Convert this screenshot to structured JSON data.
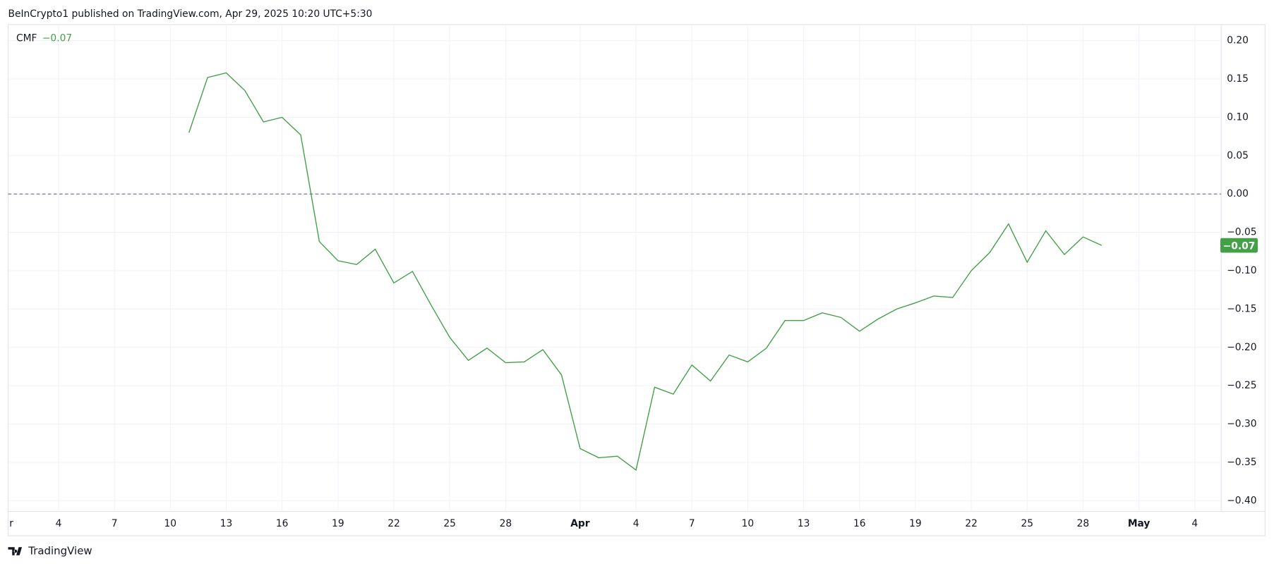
{
  "header": "BeInCrypto1 published on TradingView.com, Apr 29, 2025 10:20 UTC+5:30",
  "footer": "TradingView",
  "chart_data": {
    "type": "line",
    "x": [
      "2025-03-11",
      "2025-03-12",
      "2025-03-13",
      "2025-03-14",
      "2025-03-15",
      "2025-03-16",
      "2025-03-17",
      "2025-03-18",
      "2025-03-19",
      "2025-03-20",
      "2025-03-21",
      "2025-03-22",
      "2025-03-23",
      "2025-03-24",
      "2025-03-25",
      "2025-03-26",
      "2025-03-27",
      "2025-03-28",
      "2025-03-29",
      "2025-03-30",
      "2025-03-31",
      "2025-04-01",
      "2025-04-02",
      "2025-04-03",
      "2025-04-04",
      "2025-04-05",
      "2025-04-06",
      "2025-04-07",
      "2025-04-08",
      "2025-04-09",
      "2025-04-10",
      "2025-04-11",
      "2025-04-12",
      "2025-04-13",
      "2025-04-14",
      "2025-04-15",
      "2025-04-16",
      "2025-04-17",
      "2025-04-18",
      "2025-04-19",
      "2025-04-20",
      "2025-04-21",
      "2025-04-22",
      "2025-04-23",
      "2025-04-24",
      "2025-04-25",
      "2025-04-26",
      "2025-04-27",
      "2025-04-28",
      "2025-04-29"
    ],
    "series": [
      {
        "name": "CMF",
        "color": "#43a047",
        "values": [
          0.08,
          0.152,
          0.158,
          0.135,
          0.094,
          0.1,
          0.077,
          -0.062,
          -0.087,
          -0.092,
          -0.072,
          -0.116,
          -0.101,
          -0.145,
          -0.187,
          -0.217,
          -0.201,
          -0.22,
          -0.219,
          -0.203,
          -0.236,
          -0.332,
          -0.344,
          -0.342,
          -0.36,
          -0.252,
          -0.261,
          -0.223,
          -0.244,
          -0.21,
          -0.219,
          -0.201,
          -0.165,
          -0.165,
          -0.155,
          -0.161,
          -0.179,
          -0.163,
          -0.15,
          -0.142,
          -0.133,
          -0.135,
          -0.1,
          -0.076,
          -0.039,
          -0.089,
          -0.048,
          -0.079,
          -0.056,
          -0.067
        ],
        "value_labels": [
          null,
          null,
          null,
          null,
          null,
          null,
          null,
          null,
          null,
          null,
          null,
          null,
          null,
          null,
          null,
          null,
          null,
          null,
          null,
          null,
          null,
          null,
          null,
          null,
          null,
          null,
          null,
          null,
          null,
          null,
          null,
          null,
          null,
          null,
          null,
          null,
          null,
          null,
          null,
          null,
          null,
          null,
          null,
          null,
          null,
          null,
          null,
          null,
          null,
          "−0.07"
        ]
      }
    ],
    "xlim": [
      "2025-03-01T07:00:00Z",
      "2025-05-05T10:00:00Z"
    ],
    "xticks": [
      {
        "value": "2025-03-01",
        "label": "r"
      },
      {
        "value": "2025-03-04",
        "label": "4"
      },
      {
        "value": "2025-03-07",
        "label": "7"
      },
      {
        "value": "2025-03-10",
        "label": "10"
      },
      {
        "value": "2025-03-13",
        "label": "13"
      },
      {
        "value": "2025-03-16",
        "label": "16"
      },
      {
        "value": "2025-03-19",
        "label": "19"
      },
      {
        "value": "2025-03-22",
        "label": "22"
      },
      {
        "value": "2025-03-25",
        "label": "25"
      },
      {
        "value": "2025-03-28",
        "label": "28"
      },
      {
        "value": "2025-04-01",
        "label": "Apr"
      },
      {
        "value": "2025-04-04",
        "label": "4"
      },
      {
        "value": "2025-04-07",
        "label": "7"
      },
      {
        "value": "2025-04-10",
        "label": "10"
      },
      {
        "value": "2025-04-13",
        "label": "13"
      },
      {
        "value": "2025-04-16",
        "label": "16"
      },
      {
        "value": "2025-04-19",
        "label": "19"
      },
      {
        "value": "2025-04-22",
        "label": "22"
      },
      {
        "value": "2025-04-25",
        "label": "25"
      },
      {
        "value": "2025-04-28",
        "label": "28"
      },
      {
        "value": "2025-05-01",
        "label": "May"
      },
      {
        "value": "2025-05-04",
        "label": "4"
      }
    ],
    "ylim": [
      -0.414,
      0.221
    ],
    "yticks": [
      {
        "value": 0.2,
        "label": "0.20"
      },
      {
        "value": 0.15,
        "label": "0.15"
      },
      {
        "value": 0.1,
        "label": "0.10"
      },
      {
        "value": 0.05,
        "label": "0.05"
      },
      {
        "value": 0,
        "label": "0.00"
      },
      {
        "value": -0.05,
        "label": "−0.05"
      },
      {
        "value": -0.1,
        "label": "−0.10"
      },
      {
        "value": -0.15,
        "label": "−0.15"
      },
      {
        "value": -0.2,
        "label": "−0.20"
      },
      {
        "value": -0.25,
        "label": "−0.25"
      },
      {
        "value": -0.3,
        "label": "−0.30"
      },
      {
        "value": -0.35,
        "label": "−0.35"
      },
      {
        "value": -0.4,
        "label": "−0.40"
      }
    ],
    "hline": 0,
    "grid": true
  }
}
